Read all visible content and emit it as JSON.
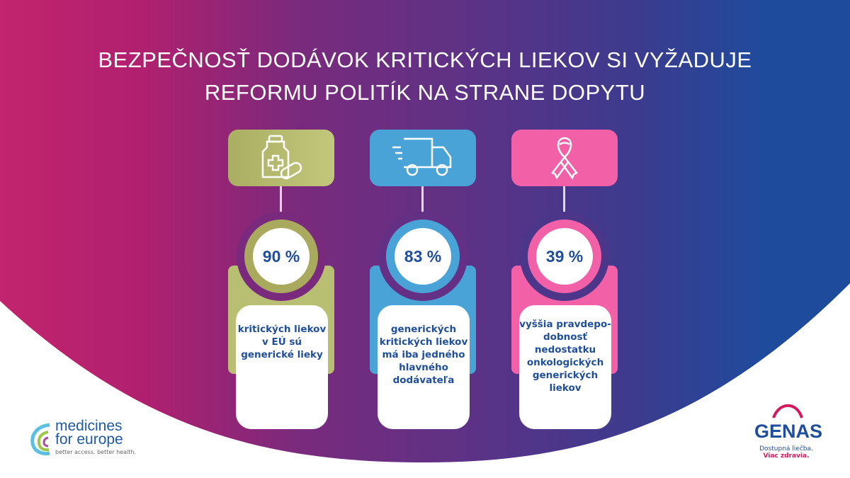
{
  "title": {
    "line1": "BEZPEČNOSŤ DODÁVOK KRITICKÝCH LIEKOV SI VYŽADUJE",
    "line2": "REFORMU POLITÍK NA STRANE DOPYTU"
  },
  "stats": [
    {
      "value": "90 %",
      "text": "kritických liekov v EÚ sú generické lieky",
      "icon": "medicine-bottle-icon",
      "color": "#b8bf72",
      "ring": "#a9aa5e"
    },
    {
      "value": "83 %",
      "text": "generických kritických liekov má iba jedného hlavného dodávateľa",
      "icon": "delivery-truck-icon",
      "color": "#4aa3d6",
      "ring": "#4aa3d6"
    },
    {
      "value": "39 %",
      "text": "vyššia pravdepo-dobnosť nedostatku onkologických generických liekov",
      "icon": "cancer-ribbon-icon",
      "color": "#f260a8",
      "ring": "#f260a8"
    }
  ],
  "logos": {
    "mfe": {
      "line1": "medicines",
      "line2": "for europe",
      "tagline": "better access. better health."
    },
    "genas": {
      "name": "GENAS",
      "tagline1": "Dostupná liečba.",
      "tagline2": "Viac zdravia."
    }
  }
}
